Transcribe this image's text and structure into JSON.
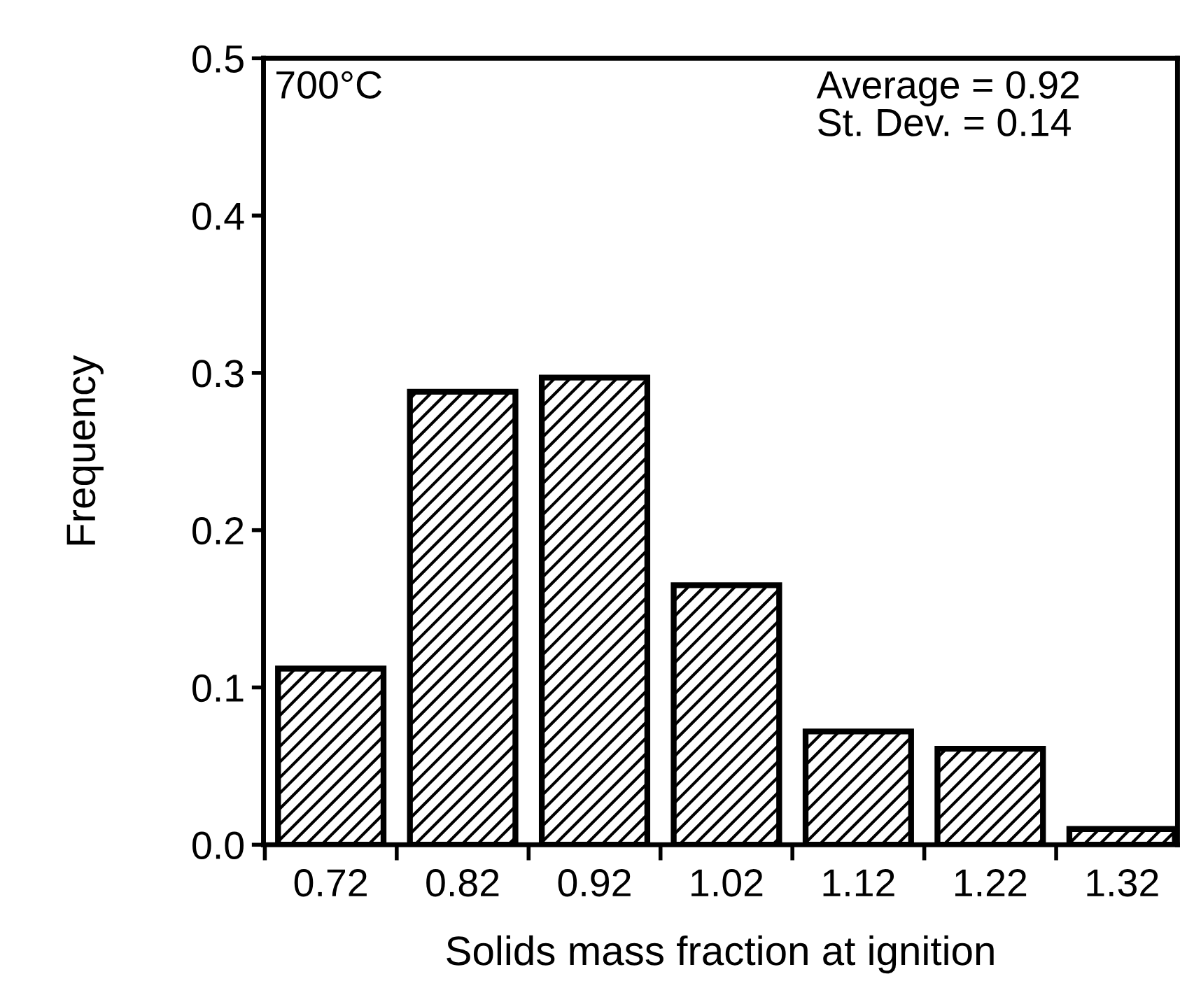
{
  "chart_data": {
    "type": "bar",
    "xlabel": "Solids mass fraction at ignition",
    "ylabel": "Frequency",
    "categories": [
      "0.72",
      "0.82",
      "0.92",
      "1.02",
      "1.12",
      "1.22",
      "1.32"
    ],
    "values": [
      0.112,
      0.288,
      0.297,
      0.165,
      0.072,
      0.061,
      0.01
    ],
    "color": "#000000",
    "ylim": [
      0,
      0.5
    ],
    "yticks": [
      {
        "value": 0,
        "label": "0.0"
      },
      0.1,
      0.2,
      0.3,
      0.4,
      0.5
    ],
    "annotations": [
      "700°C",
      "Average = 0.92\nSt. Dev. = 0.14"
    ],
    "grid": false,
    "legend": false
  }
}
